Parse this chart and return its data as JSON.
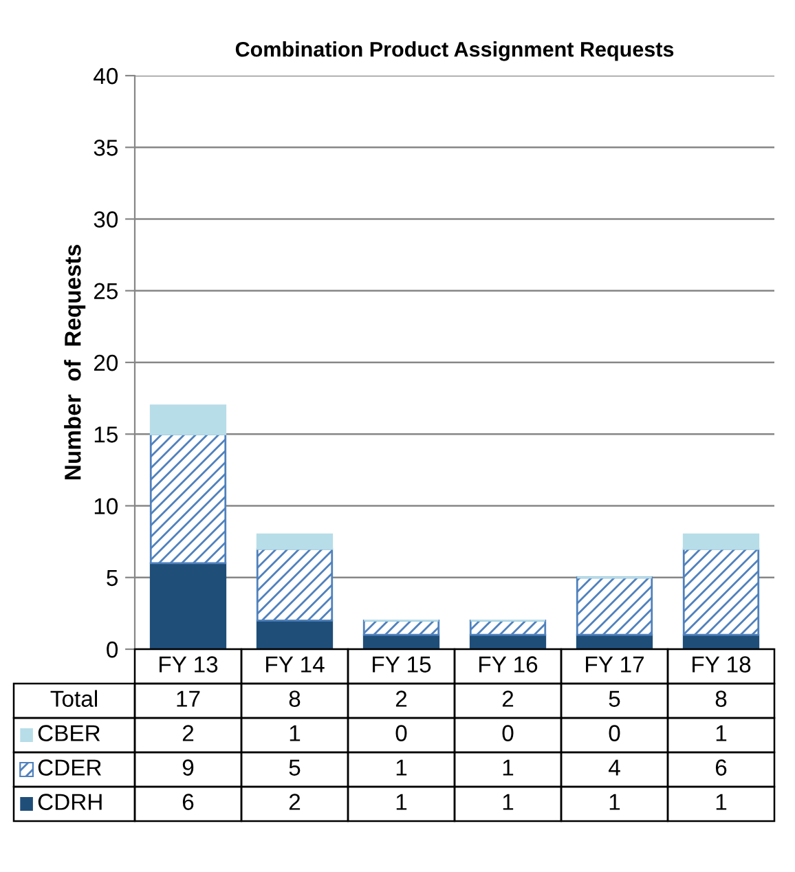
{
  "chart_data": {
    "type": "bar",
    "stacked": true,
    "title": "Combination Product Assignment Requests",
    "ylabel": "Number  of  Requests",
    "categories": [
      "FY 13",
      "FY 14",
      "FY 15",
      "FY 16",
      "FY 17",
      "FY 18"
    ],
    "series": [
      {
        "name": "CDRH",
        "color": "#1f4e79",
        "values": [
          6,
          2,
          1,
          1,
          1,
          1
        ]
      },
      {
        "name": "CDER",
        "color": "#4f81bd",
        "values": [
          9,
          5,
          1,
          1,
          4,
          6
        ]
      },
      {
        "name": "CBER",
        "color": "#b7dde8",
        "values": [
          2,
          1,
          0,
          0,
          0,
          1
        ]
      }
    ],
    "annotations": [
      "Total"
    ],
    "totals": [
      "17",
      "8",
      "2",
      "2",
      "5",
      "8"
    ],
    "data_labels": true,
    "ylim": [
      0,
      40
    ],
    "yticks": [
      0,
      5,
      10,
      15,
      20,
      25,
      30,
      35,
      40
    ],
    "grid": "y",
    "legend": "bottom left"
  }
}
